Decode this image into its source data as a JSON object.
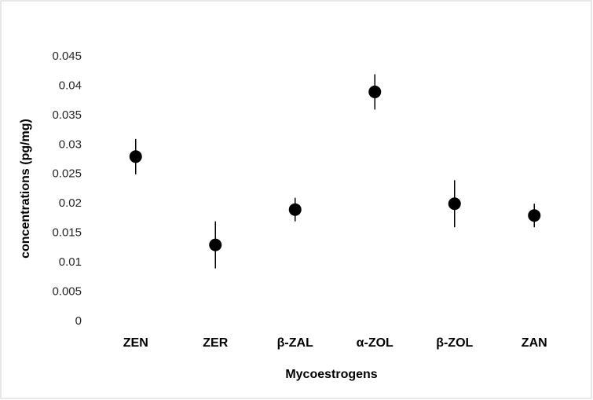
{
  "chart_data": {
    "type": "scatter",
    "x_label": "Mycoestrogens",
    "y_label": "concentrations (pg/mg)",
    "categories": [
      "ZEN",
      "ZER",
      "β-ZAL",
      "α-ZOL",
      "β-ZOL",
      "ZAN"
    ],
    "values": [
      0.028,
      0.013,
      0.019,
      0.039,
      0.02,
      0.018
    ],
    "errors": [
      0.003,
      0.004,
      0.002,
      0.003,
      0.004,
      0.002
    ],
    "color": "#000000",
    "ylim": [
      0,
      0.045
    ],
    "yticks": [
      0,
      0.005,
      0.01,
      0.015,
      0.02,
      0.025,
      0.03,
      0.035,
      0.04,
      0.045
    ],
    "grid": false
  }
}
